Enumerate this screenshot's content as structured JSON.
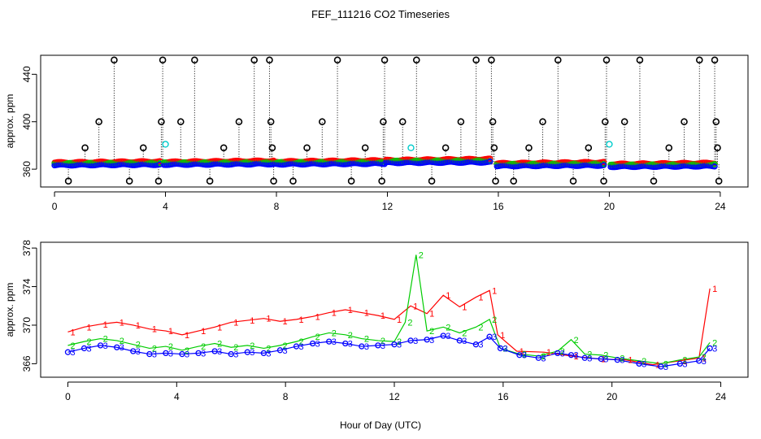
{
  "figure": {
    "title": "FEF_111216  CO2 Timeseries",
    "xlabel": "Hour of Day (UTC)"
  },
  "colors": {
    "series1": "#ff0000",
    "series2": "#00cc00",
    "series3": "#0000ff",
    "reference": "#000000",
    "cyan": "#00cccc",
    "axis": "#000000"
  },
  "chart_data": [
    {
      "type": "scatter",
      "panel": "top",
      "ylabel": "approx. ppm",
      "xlim": [
        -0.5,
        25
      ],
      "ylim": [
        345,
        456
      ],
      "xticks": [
        0,
        4,
        8,
        12,
        16,
        20,
        24
      ],
      "yticks": [
        360,
        400,
        440
      ],
      "baseline_segments": [
        {
          "start": 0.0,
          "end": 3.8,
          "base": 363.5
        },
        {
          "start": 3.95,
          "end": 7.9,
          "base": 364.0
        },
        {
          "start": 7.95,
          "end": 11.9,
          "base": 364.3
        },
        {
          "start": 11.95,
          "end": 15.7,
          "base": 365.5
        },
        {
          "start": 15.95,
          "end": 19.8,
          "base": 362.8
        },
        {
          "start": 20.05,
          "end": 23.8,
          "base": 362.2
        }
      ],
      "reference_spikes": [
        {
          "x": 0.5,
          "y": 350
        },
        {
          "x": 1.1,
          "y": 378
        },
        {
          "x": 1.6,
          "y": 400
        },
        {
          "x": 2.15,
          "y": 452
        },
        {
          "x": 2.7,
          "y": 350
        },
        {
          "x": 3.2,
          "y": 378
        },
        {
          "x": 3.75,
          "y": 350
        },
        {
          "x": 3.85,
          "y": 400
        },
        {
          "x": 3.9,
          "y": 452
        },
        {
          "x": 4.55,
          "y": 400
        },
        {
          "x": 5.05,
          "y": 452
        },
        {
          "x": 5.6,
          "y": 350
        },
        {
          "x": 6.1,
          "y": 378
        },
        {
          "x": 6.65,
          "y": 400
        },
        {
          "x": 7.2,
          "y": 452
        },
        {
          "x": 7.75,
          "y": 452
        },
        {
          "x": 7.8,
          "y": 400
        },
        {
          "x": 7.85,
          "y": 378
        },
        {
          "x": 7.9,
          "y": 350
        },
        {
          "x": 8.6,
          "y": 350
        },
        {
          "x": 9.1,
          "y": 378
        },
        {
          "x": 9.65,
          "y": 400
        },
        {
          "x": 10.2,
          "y": 452
        },
        {
          "x": 10.7,
          "y": 350
        },
        {
          "x": 11.2,
          "y": 378
        },
        {
          "x": 11.8,
          "y": 350
        },
        {
          "x": 11.85,
          "y": 400
        },
        {
          "x": 11.9,
          "y": 452
        },
        {
          "x": 12.55,
          "y": 400
        },
        {
          "x": 13.05,
          "y": 452
        },
        {
          "x": 13.6,
          "y": 350
        },
        {
          "x": 14.1,
          "y": 378
        },
        {
          "x": 14.65,
          "y": 400
        },
        {
          "x": 15.2,
          "y": 452
        },
        {
          "x": 15.75,
          "y": 452
        },
        {
          "x": 15.8,
          "y": 400
        },
        {
          "x": 15.85,
          "y": 378
        },
        {
          "x": 15.9,
          "y": 350
        },
        {
          "x": 16.55,
          "y": 350
        },
        {
          "x": 17.1,
          "y": 378
        },
        {
          "x": 17.6,
          "y": 400
        },
        {
          "x": 18.15,
          "y": 452
        },
        {
          "x": 18.7,
          "y": 350
        },
        {
          "x": 19.25,
          "y": 378
        },
        {
          "x": 19.8,
          "y": 350
        },
        {
          "x": 19.85,
          "y": 400
        },
        {
          "x": 19.9,
          "y": 452
        },
        {
          "x": 20.55,
          "y": 400
        },
        {
          "x": 21.1,
          "y": 452
        },
        {
          "x": 21.6,
          "y": 350
        },
        {
          "x": 22.15,
          "y": 378
        },
        {
          "x": 22.7,
          "y": 400
        },
        {
          "x": 23.25,
          "y": 452
        },
        {
          "x": 23.8,
          "y": 452
        },
        {
          "x": 23.85,
          "y": 400
        },
        {
          "x": 23.9,
          "y": 378
        },
        {
          "x": 23.95,
          "y": 350
        }
      ],
      "cyan_points": [
        {
          "x": 4.0,
          "y": 381
        },
        {
          "x": 12.85,
          "y": 378
        },
        {
          "x": 20.0,
          "y": 381
        }
      ]
    },
    {
      "type": "scatter",
      "panel": "bottom",
      "ylabel": "approx. ppm",
      "xlim": [
        -1,
        25
      ],
      "ylim": [
        364.6,
        378.6
      ],
      "xticks": [
        0,
        4,
        8,
        12,
        16,
        20,
        24
      ],
      "yticks": [
        366,
        370,
        374,
        378
      ],
      "series": [
        {
          "name": "1",
          "label": "1",
          "color_key": "series1",
          "points": [
            [
              0.0,
              369.3
            ],
            [
              0.6,
              369.8
            ],
            [
              1.2,
              370.1
            ],
            [
              1.8,
              370.3
            ],
            [
              2.4,
              370.0
            ],
            [
              3.0,
              369.6
            ],
            [
              3.6,
              369.4
            ],
            [
              4.2,
              369.0
            ],
            [
              4.8,
              369.4
            ],
            [
              5.4,
              369.8
            ],
            [
              6.0,
              370.3
            ],
            [
              6.6,
              370.5
            ],
            [
              7.2,
              370.7
            ],
            [
              7.8,
              370.4
            ],
            [
              8.4,
              370.6
            ],
            [
              9.0,
              370.9
            ],
            [
              9.6,
              371.3
            ],
            [
              10.2,
              371.6
            ],
            [
              10.8,
              371.3
            ],
            [
              11.4,
              371.0
            ],
            [
              12.0,
              370.6
            ],
            [
              12.6,
              372.0
            ],
            [
              13.2,
              371.2
            ],
            [
              13.8,
              373.1
            ],
            [
              14.4,
              371.9
            ],
            [
              15.0,
              372.9
            ],
            [
              15.5,
              373.6
            ],
            [
              15.8,
              369.0
            ],
            [
              16.5,
              367.3
            ],
            [
              17.5,
              367.2
            ],
            [
              18.5,
              366.8
            ],
            [
              19.5,
              366.5
            ],
            [
              20.5,
              366.4
            ],
            [
              21.5,
              365.9
            ],
            [
              22.5,
              366.3
            ],
            [
              23.2,
              366.6
            ],
            [
              23.6,
              373.8
            ]
          ]
        },
        {
          "name": "2",
          "label": "2",
          "color_key": "series2",
          "points": [
            [
              0.0,
              367.9
            ],
            [
              0.6,
              368.3
            ],
            [
              1.2,
              368.6
            ],
            [
              1.8,
              368.4
            ],
            [
              2.4,
              368.0
            ],
            [
              3.0,
              367.6
            ],
            [
              3.6,
              367.8
            ],
            [
              4.2,
              367.4
            ],
            [
              4.8,
              367.8
            ],
            [
              5.4,
              368.1
            ],
            [
              6.0,
              367.7
            ],
            [
              6.6,
              367.9
            ],
            [
              7.2,
              367.6
            ],
            [
              7.8,
              367.9
            ],
            [
              8.4,
              368.3
            ],
            [
              9.0,
              368.8
            ],
            [
              9.6,
              369.2
            ],
            [
              10.2,
              369.0
            ],
            [
              10.8,
              368.6
            ],
            [
              11.4,
              368.4
            ],
            [
              12.0,
              368.3
            ],
            [
              12.4,
              370.3
            ],
            [
              12.8,
              377.3
            ],
            [
              13.2,
              369.4
            ],
            [
              13.8,
              369.8
            ],
            [
              14.4,
              369.2
            ],
            [
              15.0,
              369.8
            ],
            [
              15.5,
              370.6
            ],
            [
              15.9,
              367.6
            ],
            [
              16.6,
              367.0
            ],
            [
              17.3,
              366.8
            ],
            [
              18.0,
              367.3
            ],
            [
              18.5,
              368.5
            ],
            [
              19.0,
              367.0
            ],
            [
              19.6,
              366.9
            ],
            [
              20.2,
              366.6
            ],
            [
              21.0,
              366.3
            ],
            [
              21.8,
              366.0
            ],
            [
              22.5,
              366.4
            ],
            [
              23.2,
              366.7
            ],
            [
              23.6,
              368.2
            ]
          ]
        },
        {
          "name": "3",
          "label": "3",
          "color_key": "series3",
          "points": [
            [
              0.0,
              367.2
            ],
            [
              0.6,
              367.6
            ],
            [
              1.2,
              367.9
            ],
            [
              1.8,
              367.7
            ],
            [
              2.4,
              367.3
            ],
            [
              3.0,
              367.0
            ],
            [
              3.6,
              367.1
            ],
            [
              4.2,
              367.0
            ],
            [
              4.8,
              367.1
            ],
            [
              5.4,
              367.3
            ],
            [
              6.0,
              367.0
            ],
            [
              6.6,
              367.2
            ],
            [
              7.2,
              367.1
            ],
            [
              7.8,
              367.4
            ],
            [
              8.4,
              367.8
            ],
            [
              9.0,
              368.1
            ],
            [
              9.6,
              368.3
            ],
            [
              10.2,
              368.1
            ],
            [
              10.8,
              367.8
            ],
            [
              11.4,
              367.9
            ],
            [
              12.0,
              368.0
            ],
            [
              12.6,
              368.4
            ],
            [
              13.2,
              368.5
            ],
            [
              13.8,
              368.9
            ],
            [
              14.4,
              368.4
            ],
            [
              15.0,
              368.0
            ],
            [
              15.5,
              368.8
            ],
            [
              15.9,
              367.6
            ],
            [
              16.6,
              366.9
            ],
            [
              17.3,
              366.6
            ],
            [
              18.0,
              367.1
            ],
            [
              18.5,
              366.9
            ],
            [
              19.0,
              366.6
            ],
            [
              19.6,
              366.5
            ],
            [
              20.2,
              366.4
            ],
            [
              21.0,
              366.0
            ],
            [
              21.8,
              365.7
            ],
            [
              22.5,
              366.0
            ],
            [
              23.2,
              366.3
            ],
            [
              23.6,
              367.6
            ]
          ]
        }
      ]
    }
  ]
}
